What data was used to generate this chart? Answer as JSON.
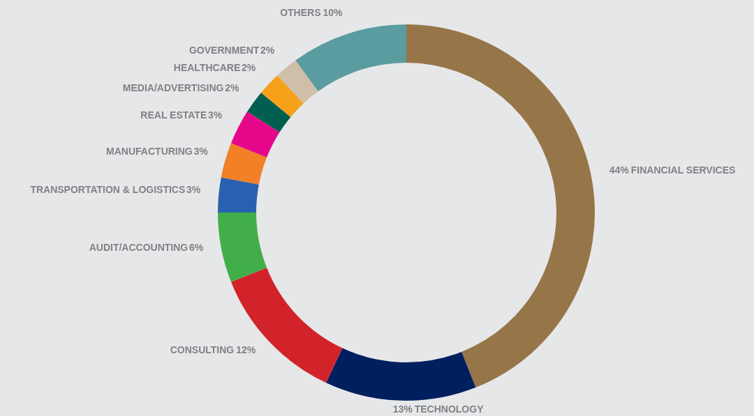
{
  "chart_data": {
    "type": "donut",
    "categories": [
      "FINANCIAL SERVICES",
      "TECHNOLOGY",
      "CONSULTING",
      "AUDIT/ACCOUNTING",
      "TRANSPORTATION & LOGISTICS",
      "MANUFACTURING",
      "REAL ESTATE",
      "MEDIA/ADVERTISING",
      "HEALTHCARE",
      "GOVERNMENT",
      "OTHERS"
    ],
    "values": [
      44,
      13,
      12,
      6,
      3,
      3,
      3,
      2,
      2,
      2,
      10
    ],
    "colors": [
      "#967649",
      "#001f5f",
      "#d2232a",
      "#41ae49",
      "#2961b0",
      "#f37f26",
      "#e6068a",
      "#005e50",
      "#f7a11a",
      "#cfbfa9",
      "#5a9ca0"
    ],
    "value_labels": [
      "44%",
      "13%",
      "12%",
      "6%",
      "3%",
      "3%",
      "3%",
      "2%",
      "2%",
      "2%",
      "10%"
    ]
  }
}
